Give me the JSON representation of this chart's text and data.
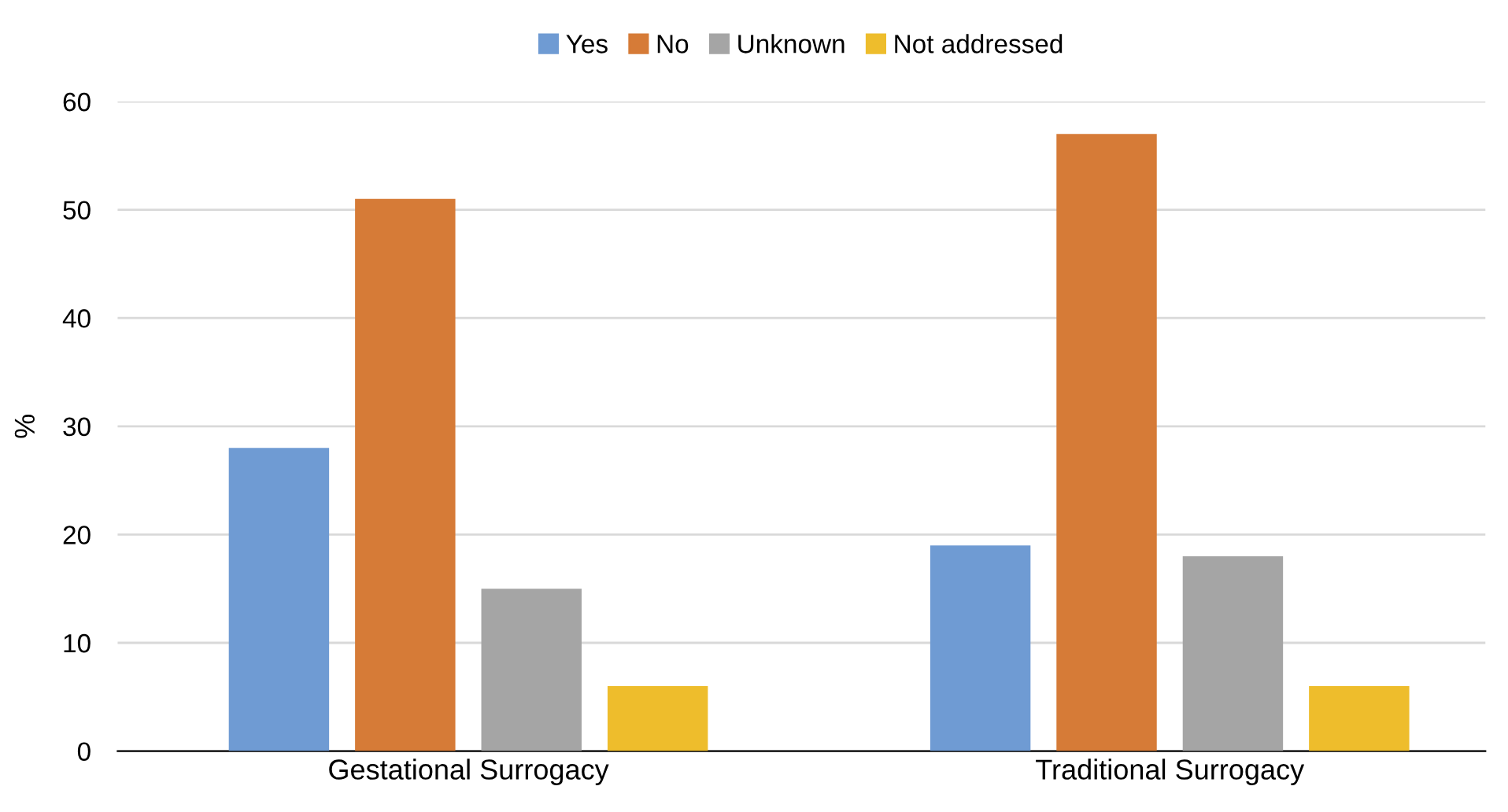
{
  "chart_data": {
    "type": "bar",
    "ylabel": "%",
    "categories": [
      "Gestational Surrogacy",
      "Traditional Surrogacy"
    ],
    "series": [
      {
        "name": "Yes",
        "color": "#6f9bd3",
        "values": [
          28,
          19
        ]
      },
      {
        "name": "No",
        "color": "#d67b37",
        "values": [
          51,
          57
        ]
      },
      {
        "name": "Unknown",
        "color": "#a5a5a5",
        "values": [
          15,
          18
        ]
      },
      {
        "name": "Not addressed",
        "color": "#eebd2c",
        "values": [
          6,
          6
        ]
      }
    ],
    "ylim": [
      0,
      60
    ],
    "yticks": [
      0,
      10,
      20,
      30,
      40,
      50,
      60
    ],
    "grid": "y",
    "legend": "top"
  }
}
